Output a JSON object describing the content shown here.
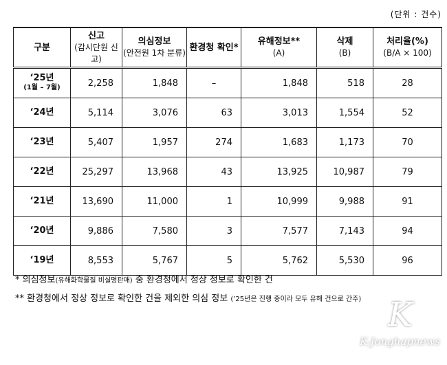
{
  "unit": "(단위 : 건수)",
  "headers": [
    {
      "main": "구분",
      "sub": ""
    },
    {
      "main": "신고",
      "sub": "(감시단원 신고)"
    },
    {
      "main": "의심정보",
      "sub": "(안전원 1차 분류)"
    },
    {
      "main": "환경청 확인*",
      "sub": ""
    },
    {
      "main": "유해정보**",
      "sub": "(A)"
    },
    {
      "main": "삭제",
      "sub": "(B)"
    },
    {
      "main": "처리율(%)",
      "sub": "(B/A × 100)"
    }
  ],
  "rows": [
    {
      "year": "‘25년",
      "note": "(1월 – 7월)",
      "cells": [
        "2,258",
        "1,848",
        "–",
        "1,848",
        "518",
        "28"
      ]
    },
    {
      "year": "‘24년",
      "note": "",
      "cells": [
        "5,114",
        "3,076",
        "63",
        "3,013",
        "1,554",
        "52"
      ]
    },
    {
      "year": "‘23년",
      "note": "",
      "cells": [
        "5,407",
        "1,957",
        "274",
        "1,683",
        "1,173",
        "70"
      ]
    },
    {
      "year": "‘22년",
      "note": "",
      "cells": [
        "25,297",
        "13,968",
        "43",
        "13,925",
        "10,987",
        "79"
      ]
    },
    {
      "year": "‘21년",
      "note": "",
      "cells": [
        "13,690",
        "11,000",
        "1",
        "10,999",
        "9,988",
        "91"
      ]
    },
    {
      "year": "‘20년",
      "note": "",
      "cells": [
        "9,886",
        "7,580",
        "3",
        "7,577",
        "7,143",
        "94"
      ]
    },
    {
      "year": "‘19년",
      "note": "",
      "cells": [
        "8,553",
        "5,767",
        "5",
        "5,762",
        "5,530",
        "96"
      ]
    }
  ],
  "notes": [
    {
      "prefix": "* 의심정보",
      "small": "(유해화학물질 비실명판매)",
      "rest": " 중 환경청에서 정상 정보로 확인한 건"
    },
    {
      "prefix": "** 환경청에서 정상 정보로 확인한 건을 제외한 의심 정보 ",
      "small": "(’25년은 진행 중이라 모두 유해 건으로 간주)",
      "rest": ""
    }
  ],
  "watermark": "K-Jonghapnews"
}
